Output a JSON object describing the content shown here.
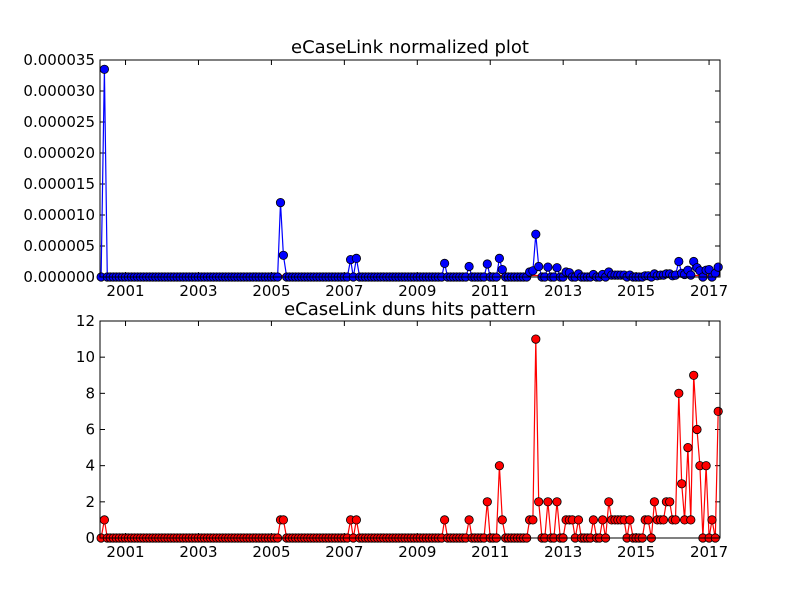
{
  "chart_data": [
    {
      "type": "line",
      "title": "eCaseLink normalized plot",
      "xlabel": "",
      "ylabel": "",
      "xlim": [
        2000.3,
        2017.3
      ],
      "ylim": [
        0,
        3.5e-05
      ],
      "x_ticks": [
        2001,
        2003,
        2005,
        2007,
        2009,
        2011,
        2013,
        2015,
        2017
      ],
      "y_ticks": [
        0,
        5e-06,
        1e-05,
        1.5e-05,
        2e-05,
        2.5e-05,
        3e-05,
        3.5e-05
      ],
      "y_tick_labels": [
        "0.000000",
        "0.000005",
        "0.000010",
        "0.000015",
        "0.000020",
        "0.000025",
        "0.000030",
        "0.000035"
      ],
      "x_tick_labels": [
        "2001",
        "2003",
        "2005",
        "2007",
        "2009",
        "2011",
        "2013",
        "2015",
        "2017"
      ],
      "grid": false,
      "colors": {
        "line": "#0000ff",
        "marker": "#0000ff",
        "baseline": "#ff0000"
      },
      "series": [
        {
          "points": [
            [
              2000.33,
              0
            ],
            [
              2000.42,
              3.35e-05
            ],
            [
              2000.5,
              0
            ],
            [
              2005.17,
              0
            ],
            [
              2005.25,
              1.2e-05
            ],
            [
              2005.33,
              3.5e-06
            ],
            [
              2005.42,
              0
            ],
            [
              2007.08,
              0
            ],
            [
              2007.17,
              2.8e-06
            ],
            [
              2007.33,
              3e-06
            ],
            [
              2007.42,
              0
            ],
            [
              2009.67,
              0
            ],
            [
              2009.75,
              2.2e-06
            ],
            [
              2009.83,
              0
            ],
            [
              2010.33,
              0
            ],
            [
              2010.42,
              1.7e-06
            ],
            [
              2010.5,
              0
            ],
            [
              2010.83,
              0
            ],
            [
              2010.92,
              2.1e-06
            ],
            [
              2011.0,
              0
            ],
            [
              2011.17,
              0
            ],
            [
              2011.25,
              3e-06
            ],
            [
              2011.33,
              1.2e-06
            ],
            [
              2011.42,
              0
            ],
            [
              2012.0,
              0
            ],
            [
              2012.08,
              8e-07
            ],
            [
              2012.17,
              1e-06
            ],
            [
              2012.25,
              6.9e-06
            ],
            [
              2012.33,
              1.7e-06
            ],
            [
              2012.42,
              0
            ],
            [
              2012.58,
              1.6e-06
            ],
            [
              2012.67,
              0
            ],
            [
              2012.83,
              1.5e-06
            ],
            [
              2012.92,
              0
            ],
            [
              2013.08,
              8e-07
            ],
            [
              2013.17,
              7e-07
            ],
            [
              2013.25,
              0
            ],
            [
              2013.42,
              5e-07
            ],
            [
              2013.5,
              0
            ],
            [
              2013.83,
              4e-07
            ],
            [
              2013.92,
              0
            ],
            [
              2014.08,
              4e-07
            ],
            [
              2014.25,
              8e-07
            ],
            [
              2014.33,
              3e-07
            ],
            [
              2014.42,
              3e-07
            ],
            [
              2014.5,
              3e-07
            ],
            [
              2014.58,
              3e-07
            ],
            [
              2014.67,
              3e-07
            ],
            [
              2014.75,
              0
            ],
            [
              2014.83,
              3e-07
            ],
            [
              2014.92,
              0
            ],
            [
              2015.17,
              0
            ],
            [
              2015.25,
              2e-07
            ],
            [
              2015.33,
              2e-07
            ],
            [
              2015.42,
              0
            ],
            [
              2015.5,
              5e-07
            ],
            [
              2015.58,
              2e-07
            ],
            [
              2015.67,
              3e-07
            ],
            [
              2015.75,
              3e-07
            ],
            [
              2015.83,
              5e-07
            ],
            [
              2015.92,
              5e-07
            ],
            [
              2016.0,
              2e-07
            ],
            [
              2016.08,
              3e-07
            ],
            [
              2016.17,
              2.5e-06
            ],
            [
              2016.25,
              6e-07
            ],
            [
              2016.33,
              4e-07
            ],
            [
              2016.42,
              1.1e-06
            ],
            [
              2016.5,
              3e-07
            ],
            [
              2016.58,
              2.5e-06
            ],
            [
              2016.67,
              1.5e-06
            ],
            [
              2016.75,
              1e-06
            ],
            [
              2016.83,
              0
            ],
            [
              2016.92,
              1.1e-06
            ],
            [
              2017.0,
              1.2e-06
            ],
            [
              2017.08,
              0
            ],
            [
              2017.17,
              6e-07
            ],
            [
              2017.25,
              1.6e-06
            ]
          ]
        }
      ]
    },
    {
      "type": "line",
      "title": "eCaseLink duns hits pattern",
      "xlabel": "",
      "ylabel": "",
      "xlim": [
        2000.3,
        2017.3
      ],
      "ylim": [
        0,
        12
      ],
      "x_ticks": [
        2001,
        2003,
        2005,
        2007,
        2009,
        2011,
        2013,
        2015,
        2017
      ],
      "y_ticks": [
        0,
        2,
        4,
        6,
        8,
        10,
        12
      ],
      "y_tick_labels": [
        "0",
        "2",
        "4",
        "6",
        "8",
        "10",
        "12"
      ],
      "x_tick_labels": [
        "2001",
        "2003",
        "2005",
        "2007",
        "2009",
        "2011",
        "2013",
        "2015",
        "2017"
      ],
      "grid": false,
      "colors": {
        "line": "#ff0000",
        "marker": "#ff0000"
      },
      "series": [
        {
          "points": [
            [
              2000.33,
              0
            ],
            [
              2000.42,
              1
            ],
            [
              2000.5,
              0
            ],
            [
              2005.17,
              0
            ],
            [
              2005.25,
              1
            ],
            [
              2005.33,
              1
            ],
            [
              2005.42,
              0
            ],
            [
              2007.08,
              0
            ],
            [
              2007.17,
              1
            ],
            [
              2007.33,
              1
            ],
            [
              2007.42,
              0
            ],
            [
              2009.67,
              0
            ],
            [
              2009.75,
              1
            ],
            [
              2009.83,
              0
            ],
            [
              2010.33,
              0
            ],
            [
              2010.42,
              1
            ],
            [
              2010.5,
              0
            ],
            [
              2010.83,
              0
            ],
            [
              2010.92,
              2
            ],
            [
              2011.0,
              0
            ],
            [
              2011.17,
              0
            ],
            [
              2011.25,
              4
            ],
            [
              2011.33,
              1
            ],
            [
              2011.42,
              0
            ],
            [
              2012.0,
              0
            ],
            [
              2012.08,
              1
            ],
            [
              2012.17,
              1
            ],
            [
              2012.25,
              11
            ],
            [
              2012.33,
              2
            ],
            [
              2012.42,
              0
            ],
            [
              2012.58,
              2
            ],
            [
              2012.67,
              0
            ],
            [
              2012.83,
              2
            ],
            [
              2012.92,
              0
            ],
            [
              2013.08,
              1
            ],
            [
              2013.17,
              1
            ],
            [
              2013.25,
              1
            ],
            [
              2013.33,
              0
            ],
            [
              2013.42,
              1
            ],
            [
              2013.5,
              0
            ],
            [
              2013.83,
              1
            ],
            [
              2013.92,
              0
            ],
            [
              2014.08,
              1
            ],
            [
              2014.25,
              2
            ],
            [
              2014.33,
              1
            ],
            [
              2014.42,
              1
            ],
            [
              2014.5,
              1
            ],
            [
              2014.58,
              1
            ],
            [
              2014.67,
              1
            ],
            [
              2014.75,
              0
            ],
            [
              2014.83,
              1
            ],
            [
              2014.92,
              0
            ],
            [
              2015.17,
              0
            ],
            [
              2015.25,
              1
            ],
            [
              2015.33,
              1
            ],
            [
              2015.42,
              0
            ],
            [
              2015.5,
              2
            ],
            [
              2015.58,
              1
            ],
            [
              2015.67,
              1
            ],
            [
              2015.75,
              1
            ],
            [
              2015.83,
              2
            ],
            [
              2015.92,
              2
            ],
            [
              2016.0,
              1
            ],
            [
              2016.08,
              1
            ],
            [
              2016.17,
              8
            ],
            [
              2016.25,
              3
            ],
            [
              2016.33,
              1
            ],
            [
              2016.42,
              5
            ],
            [
              2016.5,
              1
            ],
            [
              2016.58,
              9
            ],
            [
              2016.67,
              6
            ],
            [
              2016.75,
              4
            ],
            [
              2016.83,
              0
            ],
            [
              2016.92,
              4
            ],
            [
              2017.0,
              0
            ],
            [
              2017.08,
              1
            ],
            [
              2017.17,
              0
            ],
            [
              2017.25,
              7
            ]
          ]
        }
      ]
    }
  ]
}
